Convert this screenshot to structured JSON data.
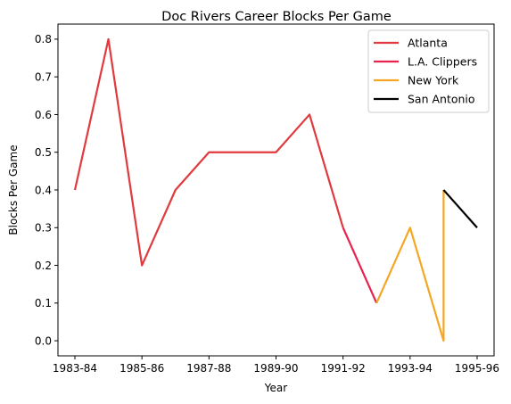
{
  "chart_data": {
    "type": "line",
    "title": "Doc Rivers Career Blocks Per Game",
    "xlabel": "Year",
    "ylabel": "Blocks Per Game",
    "x_categories": [
      "1983-84",
      "1984-85",
      "1985-86",
      "1986-87",
      "1987-88",
      "1988-89",
      "1989-90",
      "1990-91",
      "1991-92",
      "1992-93",
      "1993-94",
      "1994-95",
      "1995-96"
    ],
    "x_tick_labels": [
      "1983-84",
      "1985-86",
      "1987-88",
      "1989-90",
      "1991-92",
      "1993-94",
      "1995-96"
    ],
    "y_ticks": [
      0.0,
      0.1,
      0.2,
      0.3,
      0.4,
      0.5,
      0.6,
      0.7,
      0.8
    ],
    "y_tick_labels": [
      "0.0",
      "0.1",
      "0.2",
      "0.3",
      "0.4",
      "0.5",
      "0.6",
      "0.7",
      "0.8"
    ],
    "ylim": [
      -0.04,
      0.84
    ],
    "grid": false,
    "legend_position": "top-right",
    "series": [
      {
        "name": "Atlanta",
        "color": "#e03a3e",
        "points": [
          {
            "x": "1983-84",
            "y": 0.4
          },
          {
            "x": "1984-85",
            "y": 0.8
          },
          {
            "x": "1985-86",
            "y": 0.2
          },
          {
            "x": "1986-87",
            "y": 0.4
          },
          {
            "x": "1987-88",
            "y": 0.5
          },
          {
            "x": "1988-89",
            "y": 0.5
          },
          {
            "x": "1989-90",
            "y": 0.5
          },
          {
            "x": "1990-91",
            "y": 0.6
          },
          {
            "x": "1991-92",
            "y": 0.3
          }
        ]
      },
      {
        "name": "L.A. Clippers",
        "color": "#e8224e",
        "points": [
          {
            "x": "1991-92",
            "y": 0.3
          },
          {
            "x": "1992-93",
            "y": 0.1
          }
        ]
      },
      {
        "name": "New York",
        "color": "#f5a623",
        "points": [
          {
            "x": "1992-93",
            "y": 0.1
          },
          {
            "x": "1993-94",
            "y": 0.3
          },
          {
            "x": "1994-95",
            "y": 0.0
          },
          {
            "x": "1994-95",
            "y": 0.4
          }
        ]
      },
      {
        "name": "San Antonio",
        "color": "#000000",
        "points": [
          {
            "x": "1994-95",
            "y": 0.4
          },
          {
            "x": "1995-96",
            "y": 0.3
          }
        ]
      }
    ]
  }
}
